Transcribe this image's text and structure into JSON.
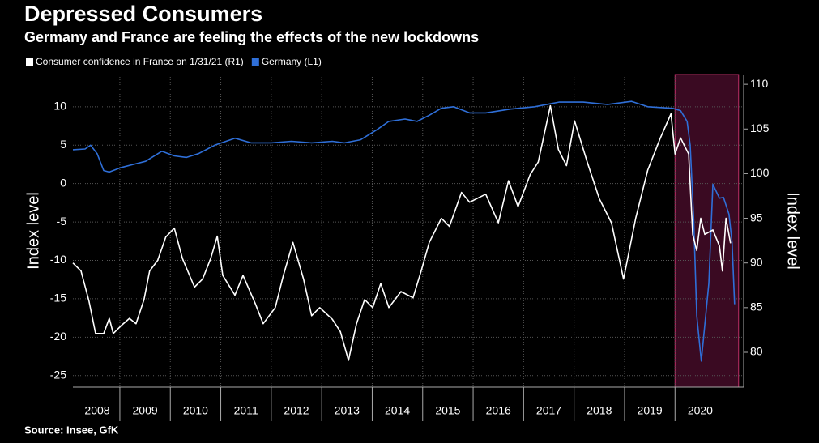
{
  "chart_data": {
    "type": "line",
    "title": "Depressed Consumers",
    "subtitle": "Germany and France are feeling the effects of the new lockdowns",
    "source": "Source: Insee, GfK",
    "ylabel": "Index level",
    "y2label": "Index level",
    "xlim": [
      2008.07,
      2021.36
    ],
    "ylim": [
      -26.5,
      14.2
    ],
    "y2lim": [
      76.1,
      111.1
    ],
    "yticks": [
      -25,
      -20,
      -15,
      -10,
      -5,
      0,
      5,
      10
    ],
    "y2ticks": [
      80,
      85,
      90,
      95,
      100,
      105,
      110
    ],
    "xticks": [
      {
        "value": 2008,
        "label": "2008"
      },
      {
        "value": 2009,
        "label": "2009"
      },
      {
        "value": 2010,
        "label": "2010"
      },
      {
        "value": 2011,
        "label": "2011"
      },
      {
        "value": 2012,
        "label": "2012"
      },
      {
        "value": 2013,
        "label": "2013"
      },
      {
        "value": 2014,
        "label": "2014"
      },
      {
        "value": 2015,
        "label": "2015"
      },
      {
        "value": 2016,
        "label": "2016"
      },
      {
        "value": 2017,
        "label": "2017"
      },
      {
        "value": 2018,
        "label": "2018"
      },
      {
        "value": 2019,
        "label": "2019"
      },
      {
        "value": 2020,
        "label": "2020"
      }
    ],
    "grid": true,
    "highlight_range": [
      2020.0,
      2021.26
    ],
    "highlight_color": "#3a0a22",
    "highlight_edge_color": "#c0306a",
    "series": [
      {
        "name": "Consumer confidence in France on 1/31/21 (R1)",
        "color": "#ffffff",
        "axis": "y2",
        "x": [
          2008.07,
          2008.23,
          2008.39,
          2008.52,
          2008.68,
          2008.79,
          2008.87,
          2009.03,
          2009.19,
          2009.32,
          2009.48,
          2009.59,
          2009.75,
          2009.91,
          2010.08,
          2010.24,
          2010.48,
          2010.64,
          2010.8,
          2010.93,
          2011.04,
          2011.28,
          2011.44,
          2011.68,
          2011.84,
          2012.08,
          2012.24,
          2012.43,
          2012.64,
          2012.8,
          2012.96,
          2013.21,
          2013.37,
          2013.53,
          2013.69,
          2013.85,
          2014.01,
          2014.17,
          2014.33,
          2014.57,
          2014.81,
          2014.97,
          2015.13,
          2015.37,
          2015.53,
          2015.77,
          2015.93,
          2016.25,
          2016.5,
          2016.7,
          2016.89,
          2017.13,
          2017.29,
          2017.53,
          2017.69,
          2017.85,
          2018.01,
          2018.26,
          2018.5,
          2018.74,
          2018.98,
          2019.22,
          2019.46,
          2019.71,
          2019.92,
          2020.0,
          2020.11,
          2020.27,
          2020.35,
          2020.43,
          2020.51,
          2020.59,
          2020.75,
          2020.88,
          2020.94,
          2021.01,
          2021.1
        ],
        "values": [
          90.0,
          89.1,
          85.7,
          82.1,
          82.1,
          83.8,
          82.1,
          83.0,
          83.8,
          83.2,
          85.9,
          89.1,
          90.3,
          92.9,
          93.9,
          90.5,
          87.3,
          88.2,
          90.5,
          93.0,
          88.6,
          86.4,
          88.6,
          85.5,
          83.2,
          85.0,
          88.6,
          92.3,
          88.2,
          84.1,
          85.0,
          83.7,
          82.3,
          79.1,
          83.2,
          85.9,
          85.0,
          87.7,
          85.0,
          86.8,
          86.1,
          89.1,
          92.3,
          95.0,
          94.1,
          97.9,
          96.8,
          97.7,
          94.5,
          99.2,
          96.3,
          99.9,
          101.3,
          107.6,
          102.7,
          100.9,
          105.9,
          101.3,
          97.2,
          94.5,
          88.2,
          95.0,
          100.4,
          104.0,
          106.7,
          102.2,
          104.0,
          102.2,
          93.2,
          91.4,
          95.0,
          93.2,
          93.7,
          91.9,
          89.1,
          95.0,
          92.2
        ]
      },
      {
        "name": "Germany (L1)",
        "color": "#2f6fd8",
        "axis": "y",
        "x": [
          2008.07,
          2008.31,
          2008.42,
          2008.55,
          2008.68,
          2008.79,
          2009.03,
          2009.27,
          2009.51,
          2009.83,
          2010.08,
          2010.32,
          2010.56,
          2010.88,
          2011.28,
          2011.6,
          2012.0,
          2012.4,
          2012.8,
          2013.21,
          2013.45,
          2013.77,
          2014.09,
          2014.33,
          2014.65,
          2014.89,
          2015.13,
          2015.37,
          2015.61,
          2015.93,
          2016.25,
          2016.74,
          2017.22,
          2017.7,
          2018.18,
          2018.66,
          2019.14,
          2019.46,
          2019.95,
          2020.11,
          2020.24,
          2020.3,
          2020.37,
          2020.43,
          2020.52,
          2020.67,
          2020.75,
          2020.88,
          2020.96,
          2021.07,
          2021.13,
          2021.18
        ],
        "values": [
          4.4,
          4.5,
          5.0,
          3.9,
          1.7,
          1.5,
          2.1,
          2.5,
          2.9,
          4.2,
          3.6,
          3.4,
          3.9,
          5.0,
          5.9,
          5.3,
          5.3,
          5.5,
          5.3,
          5.5,
          5.3,
          5.7,
          7.0,
          8.1,
          8.4,
          8.1,
          8.9,
          9.8,
          10.0,
          9.2,
          9.2,
          9.7,
          10.0,
          10.6,
          10.6,
          10.3,
          10.7,
          10.0,
          9.8,
          9.5,
          8.1,
          5.0,
          -4.6,
          -17.2,
          -23.1,
          -13.0,
          -0.1,
          -1.9,
          -1.8,
          -4.0,
          -7.7,
          -15.7
        ]
      }
    ]
  }
}
